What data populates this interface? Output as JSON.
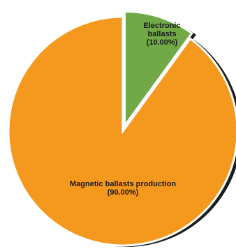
{
  "chart_data": {
    "type": "pie",
    "title": "",
    "slices": [
      {
        "label": "Electronic\nballasts",
        "percent_label": "(10.00%)",
        "value": 10.0,
        "color": "#70a946",
        "exploded": true
      },
      {
        "label": "Magnetic ballasts production",
        "percent_label": "(90.00%)",
        "value": 90.0,
        "color": "#f5981e",
        "exploded": false
      }
    ],
    "shadow_color": "#1c1c1c",
    "slice_outline_color": "#ffffff",
    "legend": "none"
  }
}
